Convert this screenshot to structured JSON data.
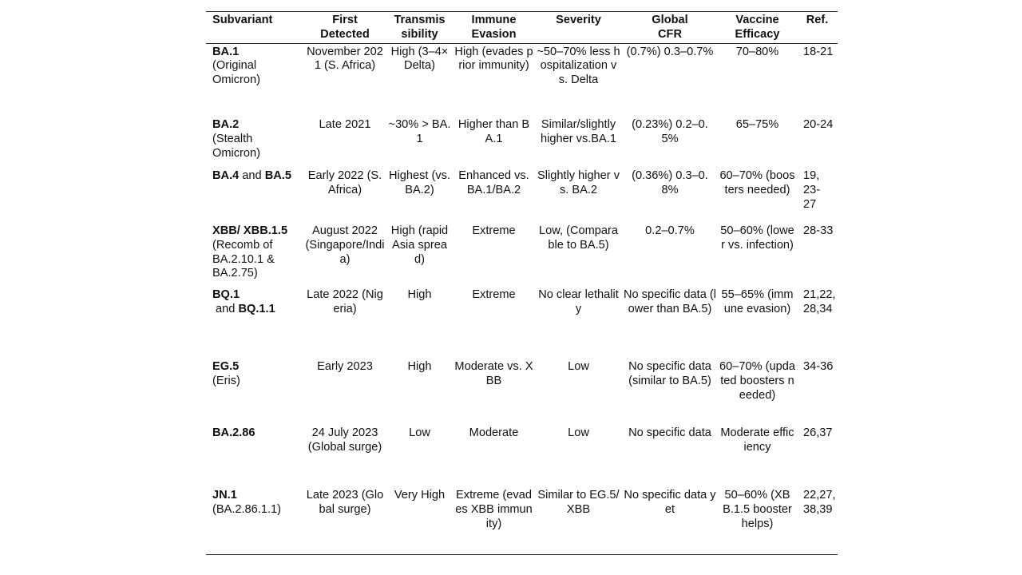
{
  "headers": [
    [
      "Subvariant",
      ""
    ],
    [
      "First",
      "Detected"
    ],
    [
      "Transmis",
      "sibility"
    ],
    [
      "Immune",
      "Evasion"
    ],
    [
      "Severity",
      ""
    ],
    [
      "Global",
      "CFR"
    ],
    [
      "Vaccine",
      "Efficacy"
    ],
    [
      "Ref.",
      ""
    ]
  ],
  "rows": [
    {
      "sub": {
        "bold1": "BA.1",
        "mid": "",
        "bold2": "",
        "desc": "(Original Omicron)"
      },
      "first": "November 2021 (S. Africa)",
      "trans": "High (3–4× Delta)",
      "immune": "High (evades prior immunity)",
      "severity": "~50–70% less hospitalization vs. Delta",
      "cfr": "(0.7%) 0.3–0.7%",
      "vaccine": "70–80%",
      "ref": "18-21"
    },
    {
      "sub": {
        "bold1": "BA.2",
        "mid": "",
        "bold2": "",
        "desc": "(Stealth Omicron)"
      },
      "first": "Late 2021",
      "trans": "~30% > BA.1",
      "immune": "Higher than BA.1",
      "severity": "Similar/slightly higher vs.BA.1",
      "cfr": "(0.23%) 0.2–0.5%",
      "vaccine": "65–75%",
      "ref": "20-24"
    },
    {
      "sub": {
        "bold1": "BA.4",
        "mid": " and ",
        "bold2": "BA.5",
        "desc": ""
      },
      "first": "Early 2022 (S. Africa)",
      "trans": "Highest (vs. BA.2)",
      "immune": "Enhanced vs. BA.1/BA.2",
      "severity": "Slightly higher vs. BA.2",
      "cfr": "(0.36%) 0.3–0.8%",
      "vaccine": "60–70% (boosters needed)",
      "ref": "19, 23-\n27"
    },
    {
      "sub": {
        "bold1": "XBB/ XBB.1.5",
        "mid": "",
        "bold2": "",
        "desc": "(Recomb of BA.2.10.1 & BA.2.75)"
      },
      "first": "August 2022 (Singapore/India)",
      "trans": "High (rapid Asia spread)",
      "immune": "Extreme",
      "severity": "Low, (Comparable to BA.5)",
      "cfr": "0.2–0.7%",
      "vaccine": "50–60% (lower vs. infection)",
      "ref": "28-33"
    },
    {
      "sub": {
        "bold1": "BQ.1",
        "mid": " and ",
        "bold2": "BQ.1.1",
        "desc": ""
      },
      "first": "Late 2022 (Nigeria)",
      "trans": "High",
      "immune": "Extreme",
      "severity": "No clear lethality",
      "cfr": "No specific data (lower than BA.5)",
      "vaccine": "55–65% (immune evasion)",
      "ref": "21,22,\n28,34"
    },
    {
      "sub": {
        "bold1": "EG.5",
        "mid": "",
        "bold2": "",
        "desc": "(Eris)"
      },
      "first": "Early 2023",
      "trans": "High",
      "immune": "Moderate vs. XBB",
      "severity": "Low",
      "cfr": "No specific data (similar to BA.5)",
      "vaccine": "60–70% (updated boosters needed)",
      "ref": "34-36"
    },
    {
      "sub": {
        "bold1": "BA.2.86",
        "mid": "",
        "bold2": "",
        "desc": ""
      },
      "first": "24 July 2023 (Global surge)",
      "trans": "Low",
      "immune": "Moderate",
      "severity": "Low",
      "cfr": "No specific data",
      "vaccine": "Moderate efficiency",
      "ref": "26,37"
    },
    {
      "sub": {
        "bold1": "JN.1",
        "mid": "",
        "bold2": "",
        "desc": "(BA.2.86.1.1)"
      },
      "first": "Late 2023 (Global surge)",
      "trans": "Very High",
      "immune": "Extreme (evades XBB immunity)",
      "severity": "Similar to EG.5/XBB",
      "cfr": "No specific data yet",
      "vaccine": "50–60% (XBB.1.5 booster helps)",
      "ref": "22,27,\n38,39"
    }
  ]
}
